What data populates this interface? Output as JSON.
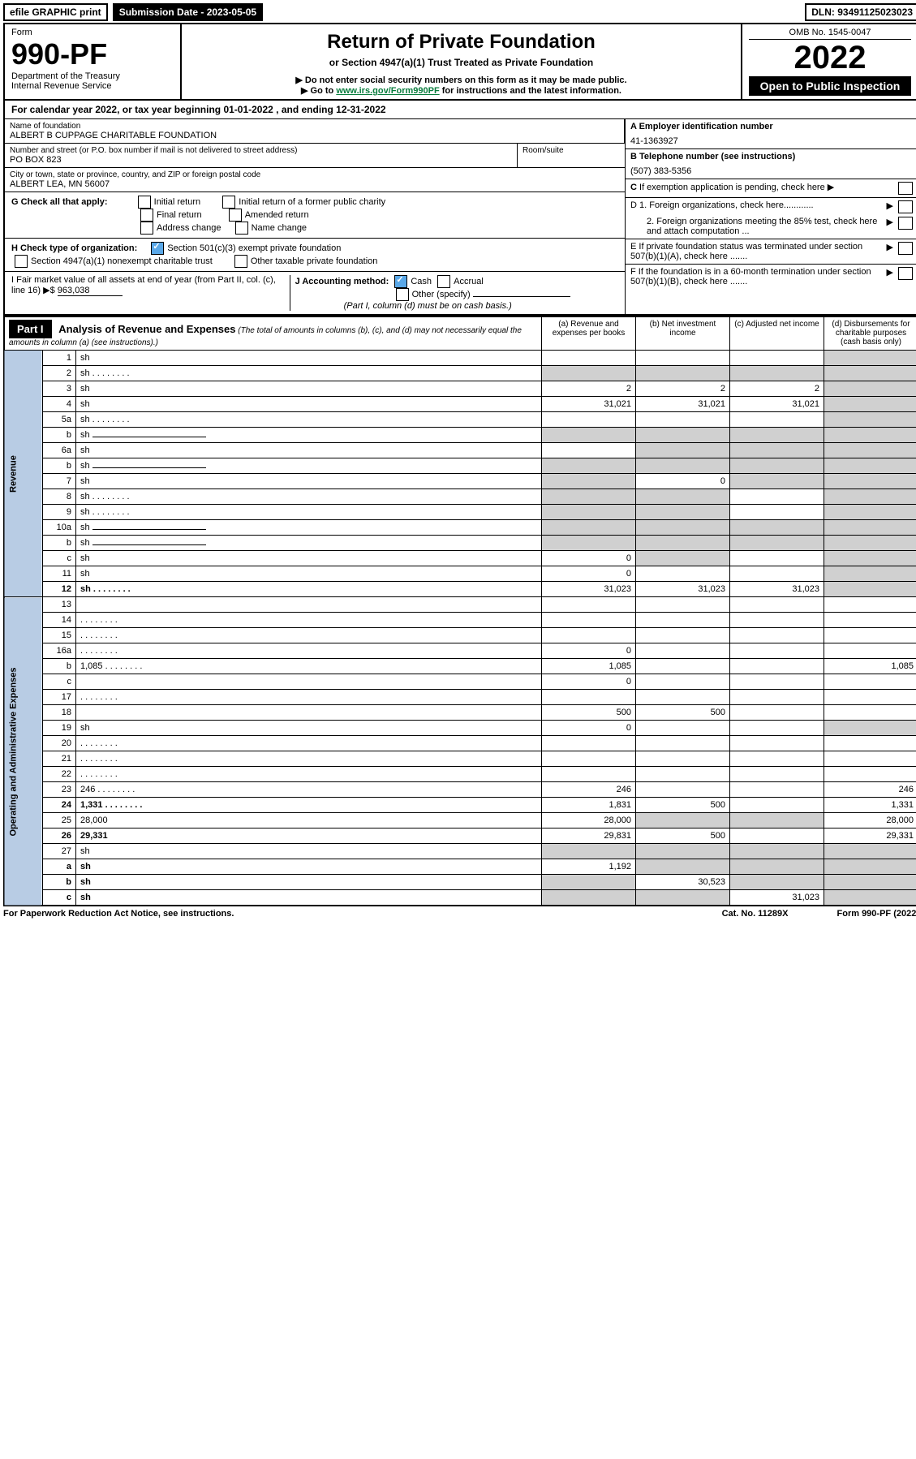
{
  "top": {
    "efile": "efile GRAPHIC print",
    "submission": "Submission Date - 2023-05-05",
    "dln": "DLN: 93491125023023"
  },
  "header": {
    "form_label": "Form",
    "form_num": "990-PF",
    "dept": "Department of the Treasury",
    "irs": "Internal Revenue Service",
    "title": "Return of Private Foundation",
    "subtitle": "or Section 4947(a)(1) Trust Treated as Private Foundation",
    "note1": "▶ Do not enter social security numbers on this form as it may be made public.",
    "note2_prefix": "▶ Go to ",
    "note2_link": "www.irs.gov/Form990PF",
    "note2_suffix": " for instructions and the latest information.",
    "omb": "OMB No. 1545-0047",
    "year": "2022",
    "inspect": "Open to Public Inspection"
  },
  "calendar": "For calendar year 2022, or tax year beginning 01-01-2022          , and ending 12-31-2022",
  "id": {
    "name_label": "Name of foundation",
    "name": "ALBERT B CUPPAGE CHARITABLE FOUNDATION",
    "addr_label": "Number and street (or P.O. box number if mail is not delivered to street address)",
    "addr": "PO BOX 823",
    "room_label": "Room/suite",
    "city_label": "City or town, state or province, country, and ZIP or foreign postal code",
    "city": "ALBERT LEA, MN  56007",
    "ein_label": "A Employer identification number",
    "ein": "41-1363927",
    "tel_label": "B Telephone number (see instructions)",
    "tel": "(507) 383-5356",
    "c_label": "C If exemption application is pending, check here",
    "d1": "D 1. Foreign organizations, check here............",
    "d2": "2. Foreign organizations meeting the 85% test, check here and attach computation ...",
    "e_label": "E   If private foundation status was terminated under section 507(b)(1)(A), check here .......",
    "f_label": "F   If the foundation is in a 60-month termination under section 507(b)(1)(B), check here ......."
  },
  "g": {
    "label": "G Check all that apply:",
    "opts": [
      "Initial return",
      "Initial return of a former public charity",
      "Final return",
      "Amended return",
      "Address change",
      "Name change"
    ]
  },
  "h": {
    "label": "H Check type of organization:",
    "opt1": "Section 501(c)(3) exempt private foundation",
    "opt2": "Section 4947(a)(1) nonexempt charitable trust",
    "opt3": "Other taxable private foundation"
  },
  "i": {
    "label": "I Fair market value of all assets at end of year (from Part II, col. (c), line 16) ▶$",
    "value": "963,038"
  },
  "j": {
    "label": "J Accounting method:",
    "cash": "Cash",
    "accrual": "Accrual",
    "other": "Other (specify)",
    "note": "(Part I, column (d) must be on cash basis.)"
  },
  "part1": {
    "label": "Part I",
    "title": "Analysis of Revenue and Expenses",
    "title_note": "(The total of amounts in columns (b), (c), and (d) may not necessarily equal the amounts in column (a) (see instructions).)",
    "cols": {
      "a": "(a)   Revenue and expenses per books",
      "b": "(b)   Net investment income",
      "c": "(c)   Adjusted net income",
      "d": "(d)   Disbursements for charitable purposes (cash basis only)"
    }
  },
  "sides": {
    "revenue": "Revenue",
    "expenses": "Operating and Administrative Expenses"
  },
  "rows": [
    {
      "n": "1",
      "d": "sh",
      "a": "",
      "b": "",
      "c": ""
    },
    {
      "n": "2",
      "d": "sh",
      "a": "sh",
      "b": "sh",
      "c": "sh",
      "dotted": true
    },
    {
      "n": "3",
      "d": "sh",
      "a": "2",
      "b": "2",
      "c": "2"
    },
    {
      "n": "4",
      "d": "sh",
      "a": "31,021",
      "b": "31,021",
      "c": "31,021"
    },
    {
      "n": "5a",
      "d": "sh",
      "a": "",
      "b": "",
      "c": "",
      "dotted": true
    },
    {
      "n": "b",
      "d": "sh",
      "a": "sh",
      "b": "sh",
      "c": "sh",
      "inline": true
    },
    {
      "n": "6a",
      "d": "sh",
      "a": "",
      "b": "sh",
      "c": "sh"
    },
    {
      "n": "b",
      "d": "sh",
      "a": "sh",
      "b": "sh",
      "c": "sh",
      "inline": true
    },
    {
      "n": "7",
      "d": "sh",
      "a": "sh",
      "b": "0",
      "c": "sh"
    },
    {
      "n": "8",
      "d": "sh",
      "a": "sh",
      "b": "sh",
      "c": "",
      "dotted": true
    },
    {
      "n": "9",
      "d": "sh",
      "a": "sh",
      "b": "sh",
      "c": "",
      "dotted": true
    },
    {
      "n": "10a",
      "d": "sh",
      "a": "sh",
      "b": "sh",
      "c": "sh",
      "inline": true
    },
    {
      "n": "b",
      "d": "sh",
      "a": "sh",
      "b": "sh",
      "c": "sh",
      "inline": true
    },
    {
      "n": "c",
      "d": "sh",
      "a": "0",
      "b": "sh",
      "c": ""
    },
    {
      "n": "11",
      "d": "sh",
      "a": "0",
      "b": "",
      "c": ""
    },
    {
      "n": "12",
      "d": "sh",
      "a": "31,023",
      "b": "31,023",
      "c": "31,023",
      "bold": true,
      "dotted": true
    },
    {
      "n": "13",
      "d": "",
      "a": "",
      "b": "",
      "c": ""
    },
    {
      "n": "14",
      "d": "",
      "a": "",
      "b": "",
      "c": "",
      "dotted": true
    },
    {
      "n": "15",
      "d": "",
      "a": "",
      "b": "",
      "c": "",
      "dotted": true
    },
    {
      "n": "16a",
      "d": "",
      "a": "0",
      "b": "",
      "c": "",
      "dotted": true
    },
    {
      "n": "b",
      "d": "1,085",
      "a": "1,085",
      "b": "",
      "c": "",
      "dotted": true
    },
    {
      "n": "c",
      "d": "",
      "a": "0",
      "b": "",
      "c": ""
    },
    {
      "n": "17",
      "d": "",
      "a": "",
      "b": "",
      "c": "",
      "dotted": true
    },
    {
      "n": "18",
      "d": "",
      "a": "500",
      "b": "500",
      "c": ""
    },
    {
      "n": "19",
      "d": "sh",
      "a": "0",
      "b": "",
      "c": ""
    },
    {
      "n": "20",
      "d": "",
      "a": "",
      "b": "",
      "c": "",
      "dotted": true
    },
    {
      "n": "21",
      "d": "",
      "a": "",
      "b": "",
      "c": "",
      "dotted": true
    },
    {
      "n": "22",
      "d": "",
      "a": "",
      "b": "",
      "c": "",
      "dotted": true
    },
    {
      "n": "23",
      "d": "246",
      "a": "246",
      "b": "",
      "c": "",
      "dotted": true
    },
    {
      "n": "24",
      "d": "1,331",
      "a": "1,831",
      "b": "500",
      "c": "",
      "bold": true,
      "dotted": true
    },
    {
      "n": "25",
      "d": "28,000",
      "a": "28,000",
      "b": "sh",
      "c": "sh"
    },
    {
      "n": "26",
      "d": "29,331",
      "a": "29,831",
      "b": "500",
      "c": "",
      "bold": true
    },
    {
      "n": "27",
      "d": "sh",
      "a": "sh",
      "b": "sh",
      "c": "sh"
    },
    {
      "n": "a",
      "d": "sh",
      "a": "1,192",
      "b": "sh",
      "c": "sh",
      "bold": true
    },
    {
      "n": "b",
      "d": "sh",
      "a": "sh",
      "b": "30,523",
      "c": "sh",
      "bold": true
    },
    {
      "n": "c",
      "d": "sh",
      "a": "sh",
      "b": "sh",
      "c": "31,023",
      "bold": true
    }
  ],
  "footer": {
    "left": "For Paperwork Reduction Act Notice, see instructions.",
    "mid": "Cat. No. 11289X",
    "right": "Form 990-PF (2022)"
  }
}
